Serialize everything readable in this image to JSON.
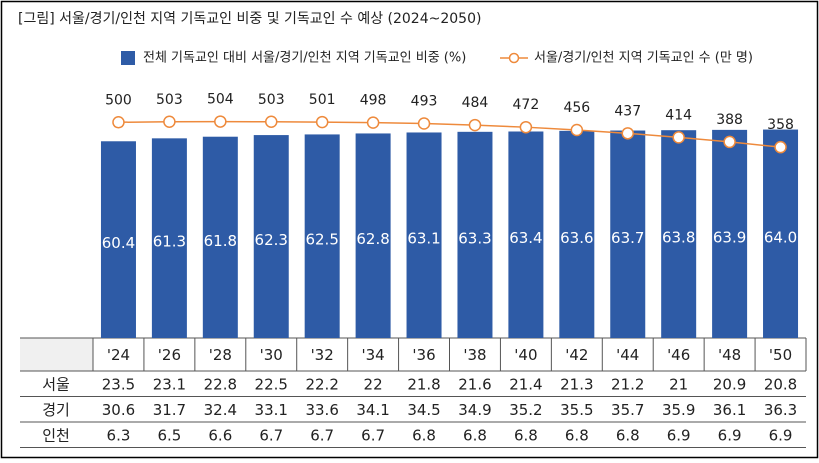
{
  "chart_data": {
    "type": "bar",
    "title": "[그림] 서울/경기/인천 지역 기독교인 비중 및 기독교인 수 예상 (2024~2050)",
    "categories": [
      "'24",
      "'26",
      "'28",
      "'30",
      "'32",
      "'34",
      "'36",
      "'38",
      "'40",
      "'42",
      "'44",
      "'46",
      "'48",
      "'50"
    ],
    "series": [
      {
        "name": "전체 기독교인 대비 서울/경기/인천 지역 기독교인 비중 (%)",
        "type": "bar",
        "color": "#2e5ba6",
        "values": [
          60.4,
          61.3,
          61.8,
          62.3,
          62.5,
          62.8,
          63.1,
          63.3,
          63.4,
          63.6,
          63.7,
          63.8,
          63.9,
          64.0
        ],
        "value_labels": [
          "60.4",
          "61.3",
          "61.8",
          "62.3",
          "62.5",
          "62.8",
          "63.1",
          "63.3",
          "63.4",
          "63.6",
          "63.7",
          "63.8",
          "63.9",
          "64.0"
        ]
      },
      {
        "name": "서울/경기/인천 지역 기독교인 수 (만 명)",
        "type": "line",
        "color": "#ee8a3c",
        "axis": "y2",
        "values": [
          500,
          503,
          504,
          503,
          501,
          498,
          493,
          484,
          472,
          456,
          437,
          414,
          388,
          358
        ]
      }
    ],
    "ylim": [
      0,
      70
    ],
    "y2lim": [
      -730,
      570
    ],
    "table_rows": [
      {
        "name": "서울",
        "values": [
          23.5,
          23.1,
          22.8,
          22.5,
          22.2,
          22,
          21.8,
          21.6,
          21.4,
          21.3,
          21.2,
          21,
          20.9,
          20.8
        ]
      },
      {
        "name": "경기",
        "values": [
          30.6,
          31.7,
          32.4,
          33.1,
          33.6,
          34.1,
          34.5,
          34.9,
          35.2,
          35.5,
          35.7,
          35.9,
          36.1,
          36.3
        ]
      },
      {
        "name": "인천",
        "values": [
          6.3,
          6.5,
          6.6,
          6.7,
          6.7,
          6.7,
          6.8,
          6.8,
          6.8,
          6.8,
          6.8,
          6.9,
          6.9,
          6.9
        ]
      }
    ]
  }
}
